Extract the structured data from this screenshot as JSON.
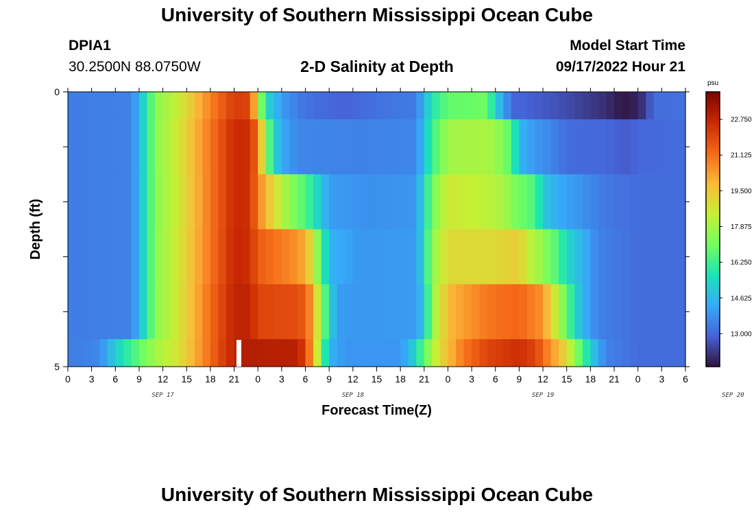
{
  "header": {
    "title": "University of Southern Mississippi Ocean Cube",
    "station_id": "DPIA1",
    "coordinates": "30.2500N  88.0750W",
    "chart_title": "2-D Salinity at Depth",
    "start_label": "Model Start Time",
    "start_value": "09/17/2022 Hour 21"
  },
  "footer": {
    "title": "University of Southern Mississippi Ocean Cube"
  },
  "colors": {
    "colormap": [
      "#30123b",
      "#4662d7",
      "#36aaf9",
      "#1ae4b6",
      "#72fe5e",
      "#c7ef34",
      "#fbb938",
      "#f56918",
      "#c92903",
      "#7a0403"
    ],
    "marker": "#ffffff"
  },
  "chart_data": {
    "type": "heatmap",
    "title": "2-D Salinity at Depth",
    "xlabel": "Forecast Time(Z)",
    "ylabel": "Depth (ft)",
    "x_tick_labels": [
      "0",
      "3",
      "6",
      "9",
      "12",
      "15",
      "18",
      "21",
      "0",
      "3",
      "6",
      "9",
      "12",
      "15",
      "18",
      "21",
      "0",
      "3",
      "6",
      "9",
      "12",
      "15",
      "18",
      "21",
      "0",
      "3",
      "6"
    ],
    "date_labels": [
      "SEP 17",
      "SEP 18",
      "SEP 19",
      "SEP 20"
    ],
    "x_range_hours": [
      0,
      78
    ],
    "y_range_ft": [
      0,
      5
    ],
    "y_tick_labels": [
      "0",
      "5"
    ],
    "colorbar": {
      "unit": "psu",
      "range": [
        11.5,
        24.0
      ],
      "tick_values": [
        22.75,
        21.125,
        19.5,
        17.875,
        16.25,
        14.625,
        13.0
      ],
      "tick_labels": [
        "22.750",
        "21.125",
        "19.500",
        "17.875",
        "16.250",
        "14.625",
        "13.000"
      ]
    },
    "marker": {
      "type": "current_time_marker",
      "x_hours": 21.6,
      "depth_ft": [
        4.5,
        5.0
      ]
    },
    "layers": [
      {
        "depth_ft": [
          0.0,
          0.5
        ],
        "points": [
          [
            0,
            13.4
          ],
          [
            8,
            13.5
          ],
          [
            9,
            14.6
          ],
          [
            10,
            15.9
          ],
          [
            11,
            17.4
          ],
          [
            14,
            18.5
          ],
          [
            18,
            20.8
          ],
          [
            21,
            22.2
          ],
          [
            23,
            22.0
          ],
          [
            24,
            18.5
          ],
          [
            25,
            15.5
          ],
          [
            27,
            14.0
          ],
          [
            30,
            13.2
          ],
          [
            35,
            12.9
          ],
          [
            39,
            13.2
          ],
          [
            44,
            13.4
          ],
          [
            45,
            14.5
          ],
          [
            46,
            15.8
          ],
          [
            48,
            16.8
          ],
          [
            53,
            17.0
          ],
          [
            54,
            15.0
          ],
          [
            55,
            14.3
          ],
          [
            56,
            13.0
          ],
          [
            62,
            12.6
          ],
          [
            68,
            12.0
          ],
          [
            70,
            11.6
          ],
          [
            72,
            11.8
          ],
          [
            73,
            12.3
          ],
          [
            74,
            13.1
          ],
          [
            78,
            13.2
          ]
        ]
      },
      {
        "depth_ft": [
          0.5,
          1.5
        ],
        "points": [
          [
            0,
            13.4
          ],
          [
            8,
            13.5
          ],
          [
            9,
            14.6
          ],
          [
            10,
            15.9
          ],
          [
            11,
            17.4
          ],
          [
            14,
            18.7
          ],
          [
            18,
            21.0
          ],
          [
            21,
            22.6
          ],
          [
            23,
            22.5
          ],
          [
            24,
            21.0
          ],
          [
            25,
            17.5
          ],
          [
            26,
            15.5
          ],
          [
            27,
            14.3
          ],
          [
            29,
            13.6
          ],
          [
            37,
            13.5
          ],
          [
            44,
            13.6
          ],
          [
            45,
            14.8
          ],
          [
            46,
            16.2
          ],
          [
            48,
            17.8
          ],
          [
            53,
            18.0
          ],
          [
            55,
            17.3
          ],
          [
            56,
            16.5
          ],
          [
            57,
            14.6
          ],
          [
            59,
            13.9
          ],
          [
            61,
            13.6
          ],
          [
            63,
            13.1
          ],
          [
            68,
            13.0
          ],
          [
            70,
            12.8
          ],
          [
            71,
            12.8
          ],
          [
            72,
            13.0
          ],
          [
            78,
            13.1
          ]
        ]
      },
      {
        "depth_ft": [
          1.5,
          2.5
        ],
        "points": [
          [
            0,
            13.4
          ],
          [
            8,
            13.5
          ],
          [
            9,
            14.6
          ],
          [
            10,
            15.9
          ],
          [
            11,
            17.4
          ],
          [
            14,
            18.6
          ],
          [
            18,
            21.0
          ],
          [
            21,
            22.6
          ],
          [
            23,
            22.5
          ],
          [
            24,
            20.8
          ],
          [
            26,
            19.0
          ],
          [
            28,
            17.5
          ],
          [
            30,
            16.5
          ],
          [
            32,
            15.0
          ],
          [
            33,
            14.0
          ],
          [
            38,
            13.8
          ],
          [
            44,
            13.9
          ],
          [
            45,
            15.5
          ],
          [
            46,
            17.0
          ],
          [
            48,
            18.6
          ],
          [
            53,
            18.3
          ],
          [
            55,
            17.9
          ],
          [
            57,
            17.0
          ],
          [
            59,
            16.5
          ],
          [
            60,
            15.0
          ],
          [
            62,
            14.3
          ],
          [
            65,
            13.8
          ],
          [
            68,
            13.3
          ],
          [
            72,
            13.1
          ],
          [
            78,
            13.1
          ]
        ]
      },
      {
        "depth_ft": [
          2.5,
          3.5
        ],
        "points": [
          [
            0,
            13.4
          ],
          [
            8,
            13.5
          ],
          [
            9,
            14.6
          ],
          [
            10,
            15.9
          ],
          [
            11,
            17.4
          ],
          [
            14,
            18.7
          ],
          [
            18,
            21.0
          ],
          [
            21,
            22.7
          ],
          [
            23,
            22.5
          ],
          [
            24,
            21.5
          ],
          [
            29,
            20.5
          ],
          [
            30,
            20.0
          ],
          [
            31,
            18.5
          ],
          [
            32,
            16.5
          ],
          [
            33,
            14.5
          ],
          [
            37,
            13.9
          ],
          [
            44,
            14.0
          ],
          [
            45,
            15.5
          ],
          [
            46,
            17.5
          ],
          [
            48,
            19.0
          ],
          [
            53,
            19.0
          ],
          [
            57,
            19.3
          ],
          [
            58,
            18.5
          ],
          [
            60,
            17.5
          ],
          [
            62,
            16.4
          ],
          [
            63,
            15.4
          ],
          [
            65,
            14.5
          ],
          [
            67,
            13.5
          ],
          [
            72,
            13.1
          ],
          [
            78,
            13.1
          ]
        ]
      },
      {
        "depth_ft": [
          3.5,
          4.5
        ],
        "points": [
          [
            0,
            13.4
          ],
          [
            8,
            13.5
          ],
          [
            9,
            14.6
          ],
          [
            10,
            15.9
          ],
          [
            11,
            17.4
          ],
          [
            14,
            18.7
          ],
          [
            18,
            21.2
          ],
          [
            21,
            22.8
          ],
          [
            23,
            22.8
          ],
          [
            24,
            22.0
          ],
          [
            29,
            21.8
          ],
          [
            30,
            21.5
          ],
          [
            31,
            20.0
          ],
          [
            32,
            17.5
          ],
          [
            33,
            15.5
          ],
          [
            34,
            14.0
          ],
          [
            37,
            13.9
          ],
          [
            44,
            14.0
          ],
          [
            45,
            15.0
          ],
          [
            46,
            17.5
          ],
          [
            48,
            19.8
          ],
          [
            53,
            21.0
          ],
          [
            57,
            21.3
          ],
          [
            60,
            20.5
          ],
          [
            61,
            19.2
          ],
          [
            62,
            18.0
          ],
          [
            63,
            16.8
          ],
          [
            64,
            15.5
          ],
          [
            65,
            14.5
          ],
          [
            67,
            13.5
          ],
          [
            72,
            13.1
          ],
          [
            78,
            13.1
          ]
        ]
      },
      {
        "depth_ft": [
          4.5,
          5.0
        ],
        "points": [
          [
            0,
            13.4
          ],
          [
            4,
            13.6
          ],
          [
            5,
            14.4
          ],
          [
            7,
            15.7
          ],
          [
            9,
            16.8
          ],
          [
            11,
            17.8
          ],
          [
            14,
            18.8
          ],
          [
            18,
            21.2
          ],
          [
            20,
            22.4
          ],
          [
            22,
            23.0
          ],
          [
            29,
            22.9
          ],
          [
            30,
            22.0
          ],
          [
            31,
            20.0
          ],
          [
            32,
            17.0
          ],
          [
            33,
            14.5
          ],
          [
            35,
            13.9
          ],
          [
            42,
            13.9
          ],
          [
            43,
            14.5
          ],
          [
            44,
            15.5
          ],
          [
            45,
            16.8
          ],
          [
            47,
            19.0
          ],
          [
            50,
            21.0
          ],
          [
            53,
            22.0
          ],
          [
            57,
            22.5
          ],
          [
            59,
            22.0
          ],
          [
            61,
            20.5
          ],
          [
            63,
            19.0
          ],
          [
            64,
            17.5
          ],
          [
            65,
            16.5
          ],
          [
            66,
            15.2
          ],
          [
            67,
            14.3
          ],
          [
            68,
            13.5
          ],
          [
            72,
            13.1
          ],
          [
            78,
            13.1
          ]
        ]
      }
    ]
  }
}
